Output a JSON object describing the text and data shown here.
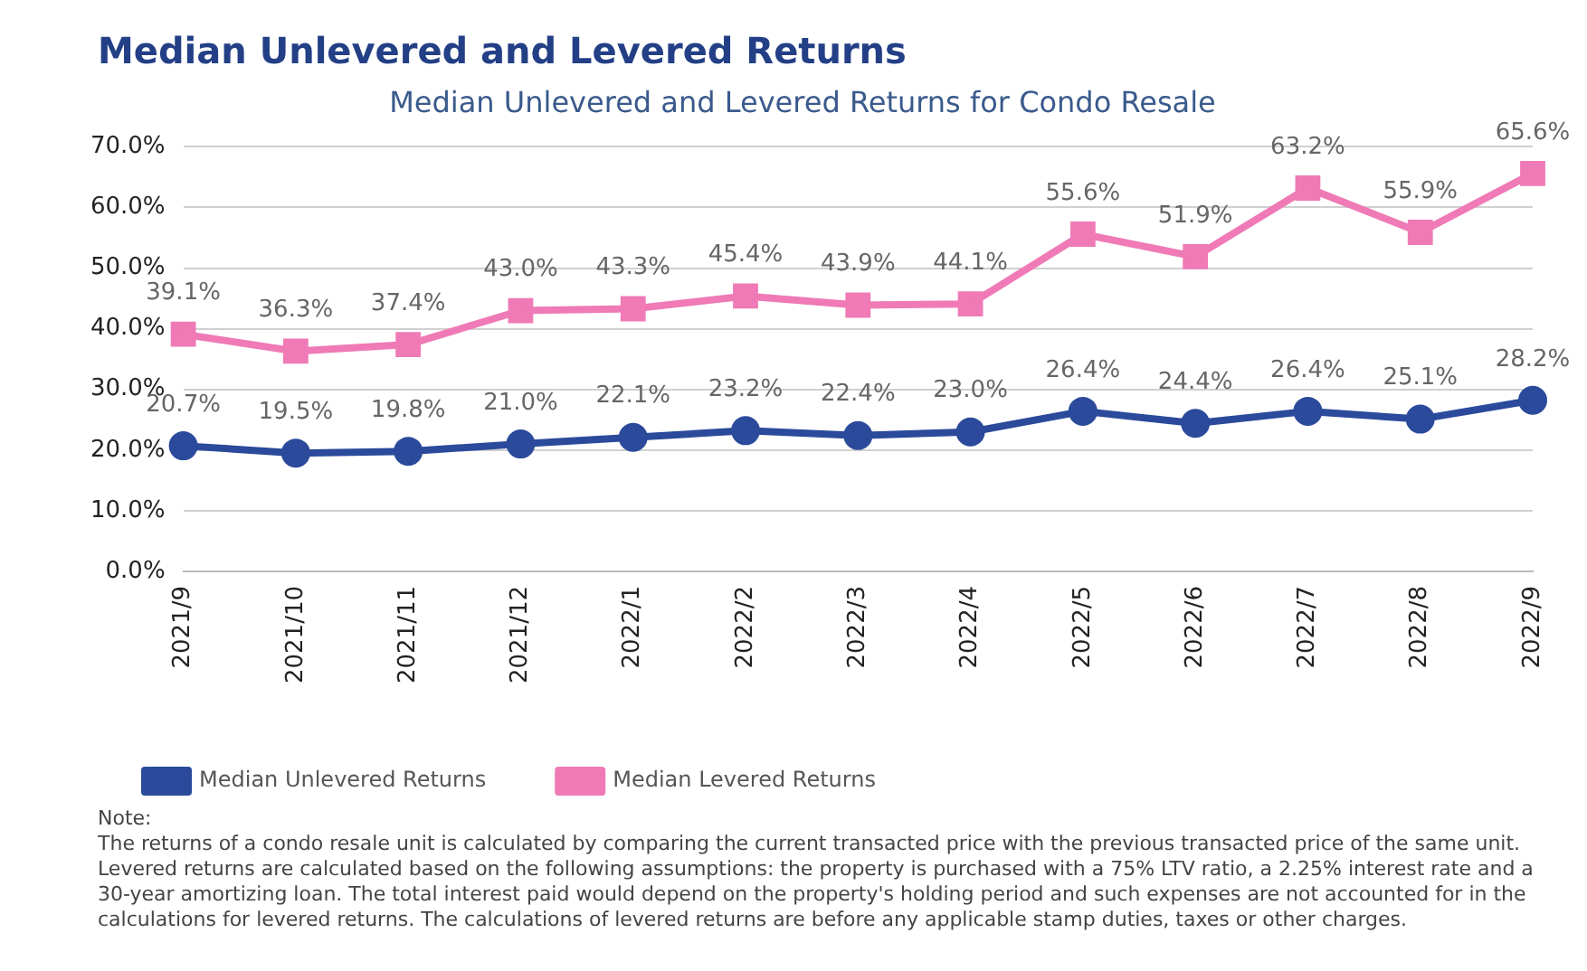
{
  "chart_data": {
    "type": "line",
    "title": "Median Unlevered and Levered Returns",
    "subtitle": "Median Unlevered and Levered Returns for Condo Resale",
    "categories": [
      "2021/9",
      "2021/10",
      "2021/11",
      "2021/12",
      "2022/1",
      "2022/2",
      "2022/3",
      "2022/4",
      "2022/5",
      "2022/6",
      "2022/7",
      "2022/8",
      "2022/9"
    ],
    "series": [
      {
        "name": "Median Unlevered Returns",
        "color": "#2b4a9b",
        "marker": "circle",
        "values": [
          20.7,
          19.5,
          19.8,
          21.0,
          22.1,
          23.2,
          22.4,
          23.0,
          26.4,
          24.4,
          26.4,
          25.1,
          28.2
        ],
        "value_labels": [
          "20.7%",
          "19.5%",
          "19.8%",
          "21.0%",
          "22.1%",
          "23.2%",
          "22.4%",
          "23.0%",
          "26.4%",
          "24.4%",
          "26.4%",
          "25.1%",
          "28.2%"
        ]
      },
      {
        "name": "Median Levered Returns",
        "color": "#ef7ab6",
        "marker": "square",
        "values": [
          39.1,
          36.3,
          37.4,
          43.0,
          43.3,
          45.4,
          43.9,
          44.1,
          55.6,
          51.9,
          63.2,
          55.9,
          65.6
        ],
        "value_labels": [
          "39.1%",
          "36.3%",
          "37.4%",
          "43.0%",
          "43.3%",
          "45.4%",
          "43.9%",
          "44.1%",
          "55.6%",
          "51.9%",
          "63.2%",
          "55.9%",
          "65.6%"
        ]
      }
    ],
    "ylim": [
      0,
      70
    ],
    "yticks": [
      {
        "value": 0,
        "label": "0.0%"
      },
      {
        "value": 10,
        "label": "10.0%"
      },
      {
        "value": 20,
        "label": "20.0%"
      },
      {
        "value": 30,
        "label": "30.0%"
      },
      {
        "value": 40,
        "label": "40.0%"
      },
      {
        "value": 50,
        "label": "50.0%"
      },
      {
        "value": 60,
        "label": "60.0%"
      },
      {
        "value": 70,
        "label": "70.0%"
      }
    ],
    "grid": "y",
    "legend": "bottom",
    "line_style": "solid",
    "annotations": [
      "Note:",
      "The returns of a condo resale unit is calculated by comparing the current transacted price with the previous transacted price of the same unit. Levered returns are calculated based on the following assumptions: the property is purchased with a 75% LTV ratio, a 2.25% interest rate and a 30-year amortizing loan. The total interest paid would depend on the property's holding period and such expenses are not accounted for in the calculations for levered returns. The calculations of levered returns are before any applicable stamp duties, taxes or other charges."
    ]
  }
}
